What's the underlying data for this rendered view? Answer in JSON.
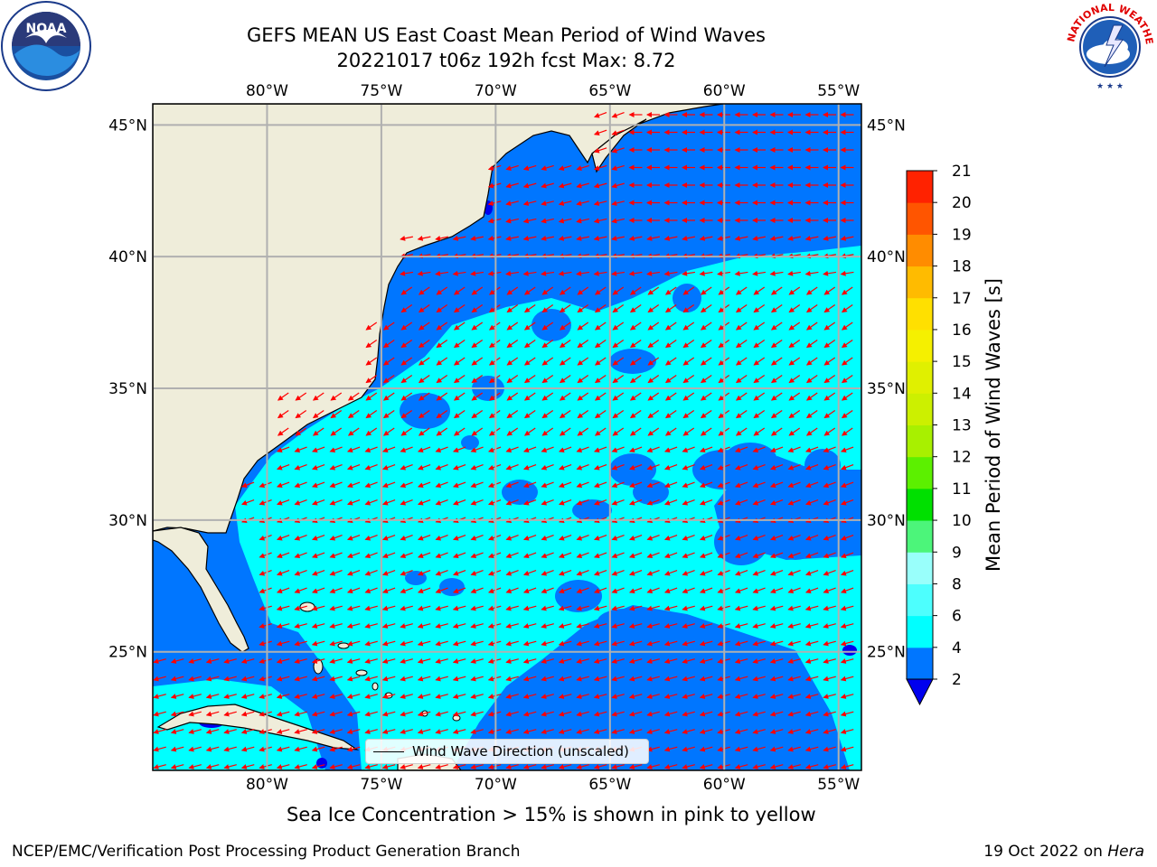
{
  "header": {
    "title_line1": "GEFS MEAN US East Coast Mean Period of Wind Waves",
    "title_line2": "20221017 t06z 192h fcst   Max: 8.72"
  },
  "logos": {
    "left": "noaa-logo",
    "left_text": "NOAA",
    "right": "nws-logo",
    "right_text": "NATIONAL WEATHER SERVICE"
  },
  "map": {
    "lon_range": [
      -85,
      -54
    ],
    "lat_range": [
      20.5,
      45.8
    ],
    "top_lon_labels": [
      "80°W",
      "75°W",
      "70°W",
      "65°W",
      "60°W",
      "55°W"
    ],
    "bottom_lon_labels": [
      "80°W",
      "75°W",
      "70°W",
      "65°W",
      "60°W",
      "55°W"
    ],
    "left_lat_labels": [
      "45°N",
      "40°N",
      "35°N",
      "30°N",
      "25°N"
    ],
    "right_lat_labels": [
      "45°N",
      "40°N",
      "35°N",
      "30°N",
      "25°N"
    ],
    "land_color": "#efedda",
    "arrow_color": "#ff0000",
    "grid_color": "#b0b0b0",
    "legend_label": "Wind Wave Direction (unscaled)"
  },
  "colorbar": {
    "label": "Mean Period of Wind Waves [s]",
    "ticks": [
      "2",
      "4",
      "6",
      "8",
      "9",
      "10",
      "11",
      "12",
      "13",
      "14",
      "15",
      "16",
      "17",
      "18",
      "19",
      "20",
      "21"
    ],
    "colors": [
      "#0076ff",
      "#00ffff",
      "#4dfffe",
      "#99fffb",
      "#4cf57a",
      "#00e000",
      "#5cf000",
      "#a8f000",
      "#ccf000",
      "#e0f000",
      "#f5f000",
      "#ffe000",
      "#ffbb00",
      "#ff8c00",
      "#ff5500",
      "#ff2200"
    ],
    "under_color": "#0000ee"
  },
  "notes": {
    "ice": "Sea Ice Concentration > 15% is shown in pink to yellow"
  },
  "footer": {
    "left": "NCEP/EMC/Verification Post Processing Product Generation Branch",
    "date": "19 Oct 2022 on ",
    "machine": "Hera"
  }
}
